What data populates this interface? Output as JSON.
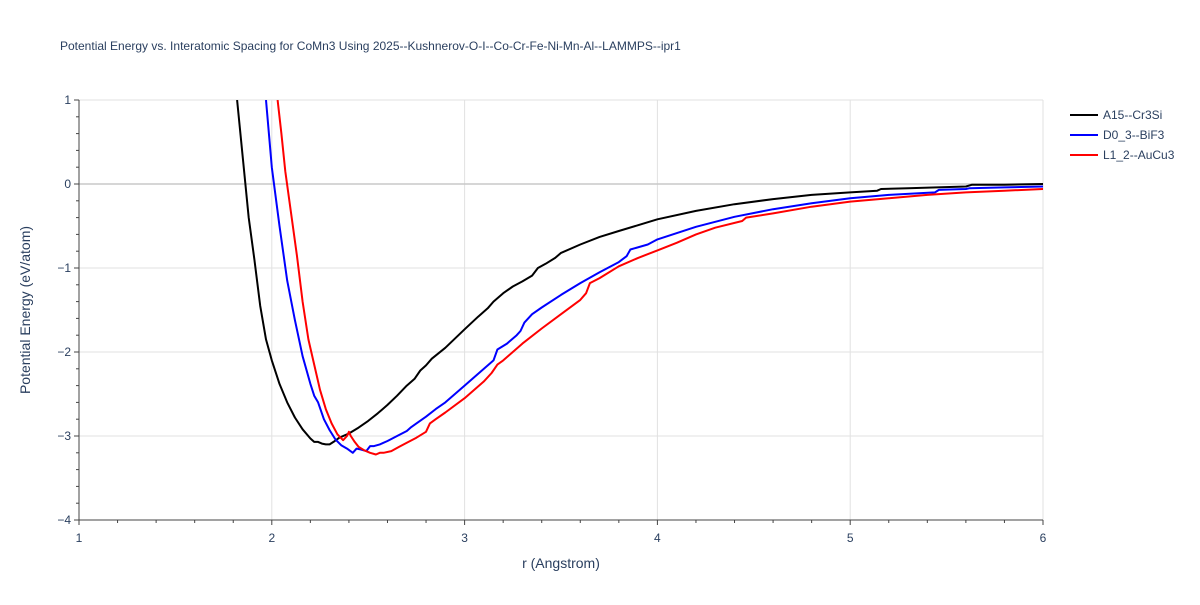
{
  "chart_data": {
    "type": "line",
    "title": "Potential Energy vs. Interatomic Spacing for CoMn3 Using 2025--Kushnerov-O-I--Co-Cr-Fe-Ni-Mn-Al--LAMMPS--ipr1",
    "xlabel": "r (Angstrom)",
    "ylabel": "Potential Energy (eV/atom)",
    "xlim": [
      1,
      6
    ],
    "ylim": [
      -4,
      1
    ],
    "x_ticks": [
      1,
      2,
      3,
      4,
      5,
      6
    ],
    "x_tick_labels": [
      "1",
      "2",
      "3",
      "4",
      "5",
      "6"
    ],
    "y_ticks": [
      -4,
      -3,
      -2,
      -1,
      0,
      1
    ],
    "y_tick_labels": [
      "−4",
      "−3",
      "−2",
      "−1",
      "0",
      "1"
    ],
    "grid": true,
    "legend_position": "top-right",
    "series": [
      {
        "name": "A15--Cr3Si",
        "color": "#000000",
        "x": [
          1.82,
          1.85,
          1.88,
          1.91,
          1.94,
          1.97,
          2.0,
          2.04,
          2.08,
          2.12,
          2.16,
          2.2,
          2.22,
          2.24,
          2.26,
          2.28,
          2.3,
          2.32,
          2.35,
          2.4,
          2.45,
          2.5,
          2.55,
          2.6,
          2.65,
          2.7,
          2.74,
          2.77,
          2.8,
          2.83,
          2.9,
          3.0,
          3.07,
          3.12,
          3.15,
          3.2,
          3.25,
          3.3,
          3.35,
          3.38,
          3.42,
          3.47,
          3.5,
          3.6,
          3.7,
          3.8,
          3.9,
          4.0,
          4.2,
          4.4,
          4.6,
          4.8,
          5.0,
          5.14,
          5.16,
          5.3,
          5.45,
          5.6,
          5.63,
          5.8,
          6.0
        ],
        "y": [
          1.0,
          0.3,
          -0.4,
          -0.9,
          -1.45,
          -1.85,
          -2.1,
          -2.38,
          -2.6,
          -2.78,
          -2.92,
          -3.03,
          -3.07,
          -3.07,
          -3.09,
          -3.1,
          -3.1,
          -3.07,
          -3.02,
          -2.97,
          -2.9,
          -2.82,
          -2.73,
          -2.63,
          -2.52,
          -2.4,
          -2.32,
          -2.22,
          -2.16,
          -2.08,
          -1.95,
          -1.73,
          -1.58,
          -1.48,
          -1.4,
          -1.3,
          -1.22,
          -1.16,
          -1.09,
          -1.0,
          -0.95,
          -0.88,
          -0.82,
          -0.72,
          -0.63,
          -0.56,
          -0.49,
          -0.42,
          -0.32,
          -0.24,
          -0.18,
          -0.13,
          -0.1,
          -0.08,
          -0.06,
          -0.05,
          -0.04,
          -0.03,
          -0.01,
          -0.01,
          0.0
        ]
      },
      {
        "name": "D0_3--BiF3",
        "color": "#0000ff",
        "x": [
          1.97,
          2.0,
          2.04,
          2.08,
          2.12,
          2.16,
          2.2,
          2.22,
          2.24,
          2.27,
          2.3,
          2.33,
          2.36,
          2.39,
          2.42,
          2.44,
          2.46,
          2.49,
          2.51,
          2.53,
          2.56,
          2.6,
          2.65,
          2.7,
          2.72,
          2.75,
          2.8,
          2.85,
          2.9,
          3.0,
          3.1,
          3.15,
          3.17,
          3.22,
          3.27,
          3.29,
          3.31,
          3.35,
          3.4,
          3.5,
          3.6,
          3.7,
          3.8,
          3.84,
          3.86,
          3.95,
          4.0,
          4.2,
          4.4,
          4.6,
          4.8,
          5.0,
          5.2,
          5.44,
          5.46,
          5.6,
          5.62,
          5.8,
          6.0
        ],
        "y": [
          1.0,
          0.2,
          -0.5,
          -1.15,
          -1.62,
          -2.05,
          -2.38,
          -2.52,
          -2.6,
          -2.8,
          -2.93,
          -3.04,
          -3.11,
          -3.15,
          -3.2,
          -3.15,
          -3.16,
          -3.18,
          -3.12,
          -3.12,
          -3.1,
          -3.06,
          -3.0,
          -2.94,
          -2.9,
          -2.85,
          -2.77,
          -2.68,
          -2.6,
          -2.4,
          -2.2,
          -2.1,
          -1.97,
          -1.9,
          -1.8,
          -1.75,
          -1.65,
          -1.55,
          -1.47,
          -1.32,
          -1.18,
          -1.05,
          -0.93,
          -0.86,
          -0.78,
          -0.72,
          -0.66,
          -0.51,
          -0.39,
          -0.3,
          -0.23,
          -0.17,
          -0.13,
          -0.1,
          -0.07,
          -0.06,
          -0.05,
          -0.04,
          -0.03
        ]
      },
      {
        "name": "L1_2--AuCu3",
        "color": "#ff0000",
        "x": [
          2.03,
          2.05,
          2.07,
          2.1,
          2.13,
          2.16,
          2.19,
          2.22,
          2.25,
          2.28,
          2.31,
          2.34,
          2.37,
          2.39,
          2.4,
          2.41,
          2.43,
          2.45,
          2.48,
          2.51,
          2.54,
          2.56,
          2.58,
          2.62,
          2.66,
          2.7,
          2.75,
          2.8,
          2.82,
          2.85,
          2.9,
          3.0,
          3.1,
          3.14,
          3.17,
          3.2,
          3.3,
          3.4,
          3.5,
          3.6,
          3.63,
          3.65,
          3.7,
          3.8,
          3.9,
          4.0,
          4.1,
          4.2,
          4.3,
          4.44,
          4.46,
          4.6,
          4.8,
          5.0,
          5.2,
          5.4,
          5.6,
          5.8,
          6.0
        ],
        "y": [
          1.0,
          0.6,
          0.15,
          -0.35,
          -0.85,
          -1.4,
          -1.85,
          -2.15,
          -2.45,
          -2.68,
          -2.85,
          -2.98,
          -3.05,
          -3.0,
          -2.95,
          -3.0,
          -3.07,
          -3.13,
          -3.17,
          -3.2,
          -3.22,
          -3.2,
          -3.2,
          -3.18,
          -3.13,
          -3.08,
          -3.02,
          -2.95,
          -2.85,
          -2.8,
          -2.72,
          -2.55,
          -2.35,
          -2.25,
          -2.15,
          -2.1,
          -1.9,
          -1.72,
          -1.55,
          -1.38,
          -1.3,
          -1.18,
          -1.12,
          -0.98,
          -0.88,
          -0.79,
          -0.7,
          -0.6,
          -0.52,
          -0.44,
          -0.4,
          -0.35,
          -0.27,
          -0.21,
          -0.17,
          -0.13,
          -0.1,
          -0.08,
          -0.06
        ]
      }
    ]
  }
}
